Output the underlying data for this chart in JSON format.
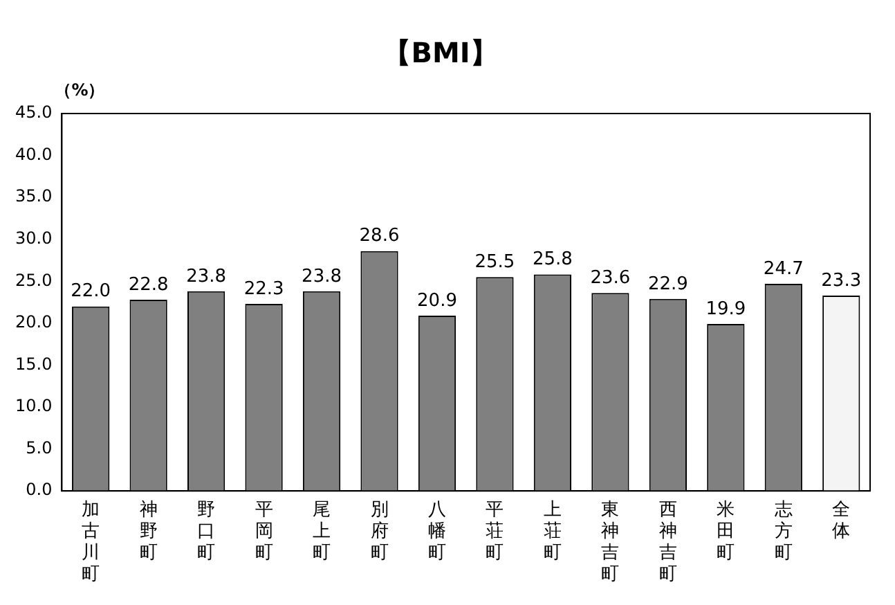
{
  "chart_data": {
    "type": "bar",
    "title": "【BMI】",
    "ylabel": "（%）",
    "categories": [
      "加古川町",
      "神野町",
      "野口町",
      "平岡町",
      "尾上町",
      "別府町",
      "八幡町",
      "平荘町",
      "上荘町",
      "東神吉町",
      "西神吉町",
      "米田町",
      "志方町",
      "全体"
    ],
    "values": [
      22.0,
      22.8,
      23.8,
      22.3,
      23.8,
      28.6,
      20.9,
      25.5,
      25.8,
      23.6,
      22.9,
      19.9,
      24.7,
      23.3
    ],
    "value_labels": [
      "22.0",
      "22.8",
      "23.8",
      "22.3",
      "23.8",
      "28.6",
      "20.9",
      "25.5",
      "25.8",
      "23.6",
      "22.9",
      "19.9",
      "24.7",
      "23.3"
    ],
    "colors": [
      "#808080",
      "#808080",
      "#808080",
      "#808080",
      "#808080",
      "#808080",
      "#808080",
      "#808080",
      "#808080",
      "#808080",
      "#808080",
      "#808080",
      "#808080",
      "#f4f4f4"
    ],
    "ylim": [
      0,
      45
    ],
    "yticks": [
      {
        "value": 0,
        "label": "0.0"
      },
      {
        "value": 5,
        "label": "5.0"
      },
      {
        "value": 10,
        "label": "10.0"
      },
      {
        "value": 15,
        "label": "15.0"
      },
      {
        "value": 20,
        "label": "20.0"
      },
      {
        "value": 25,
        "label": "25.0"
      },
      {
        "value": 30,
        "label": "30.0"
      },
      {
        "value": 35,
        "label": "35.0"
      },
      {
        "value": 40,
        "label": "40.0"
      },
      {
        "value": 45,
        "label": "45.0"
      }
    ],
    "grid": false,
    "legend": false
  }
}
